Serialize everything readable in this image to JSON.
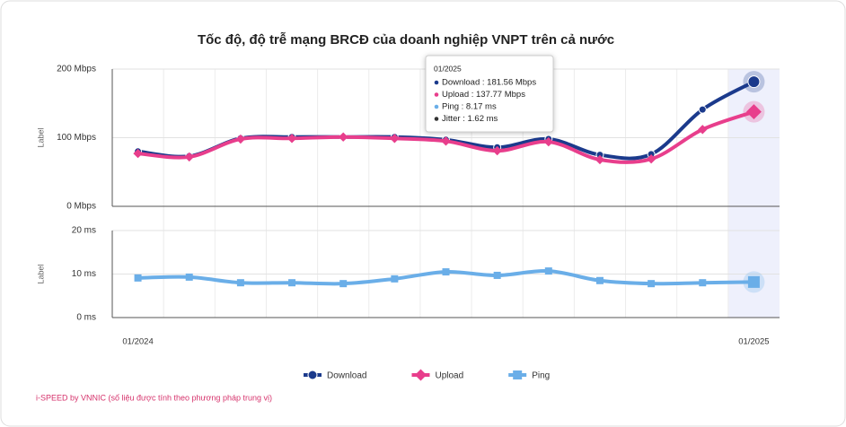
{
  "chart_data": [
    {
      "type": "line",
      "title": "Tốc độ, độ trễ mạng BRCĐ của doanh nghiệp VNPT trên cả nước",
      "y_label": "Label",
      "ylim": [
        0,
        200
      ],
      "yticks": [
        {
          "value": 0,
          "label": "0 Mbps"
        },
        {
          "value": 100,
          "label": "100 Mbps"
        },
        {
          "value": 200,
          "label": "200 Mbps"
        }
      ],
      "grid": true,
      "series": [
        {
          "name": "Download",
          "color": "#1b3a8c",
          "marker": "circle",
          "values": [
            80,
            73,
            99,
            101,
            101,
            101,
            97,
            86,
            98,
            75,
            76,
            141,
            181.56
          ]
        },
        {
          "name": "Upload",
          "color": "#e83e8c",
          "marker": "diamond",
          "values": [
            77,
            72,
            98,
            99,
            101,
            99,
            95,
            81,
            94,
            68,
            69,
            112,
            137.77
          ]
        }
      ]
    },
    {
      "type": "line",
      "y_label": "Label",
      "categories": [
        "01/2024",
        null,
        null,
        null,
        null,
        null,
        null,
        null,
        null,
        null,
        null,
        null,
        "01/2025"
      ],
      "ylim": [
        0,
        20
      ],
      "yticks": [
        {
          "value": 0,
          "label": "0 ms"
        },
        {
          "value": 10,
          "label": "10 ms"
        },
        {
          "value": 20,
          "label": "20 ms"
        }
      ],
      "grid": true,
      "series": [
        {
          "name": "Ping",
          "color": "#6aaee8",
          "marker": "square",
          "values": [
            9.1,
            9.3,
            8.0,
            8.0,
            7.8,
            8.9,
            10.5,
            9.7,
            10.7,
            8.5,
            7.8,
            8.0,
            8.17
          ]
        }
      ]
    }
  ],
  "tooltip": {
    "title": "01/2025",
    "items": [
      "Download : 181.56 Mbps",
      "Upload : 137.77 Mbps",
      "Ping : 8.17 ms",
      "Jitter : 1.62 ms"
    ]
  },
  "footnote": "i-SPEED by VNNIC (số liệu được tính theo phương pháp trung vị)"
}
